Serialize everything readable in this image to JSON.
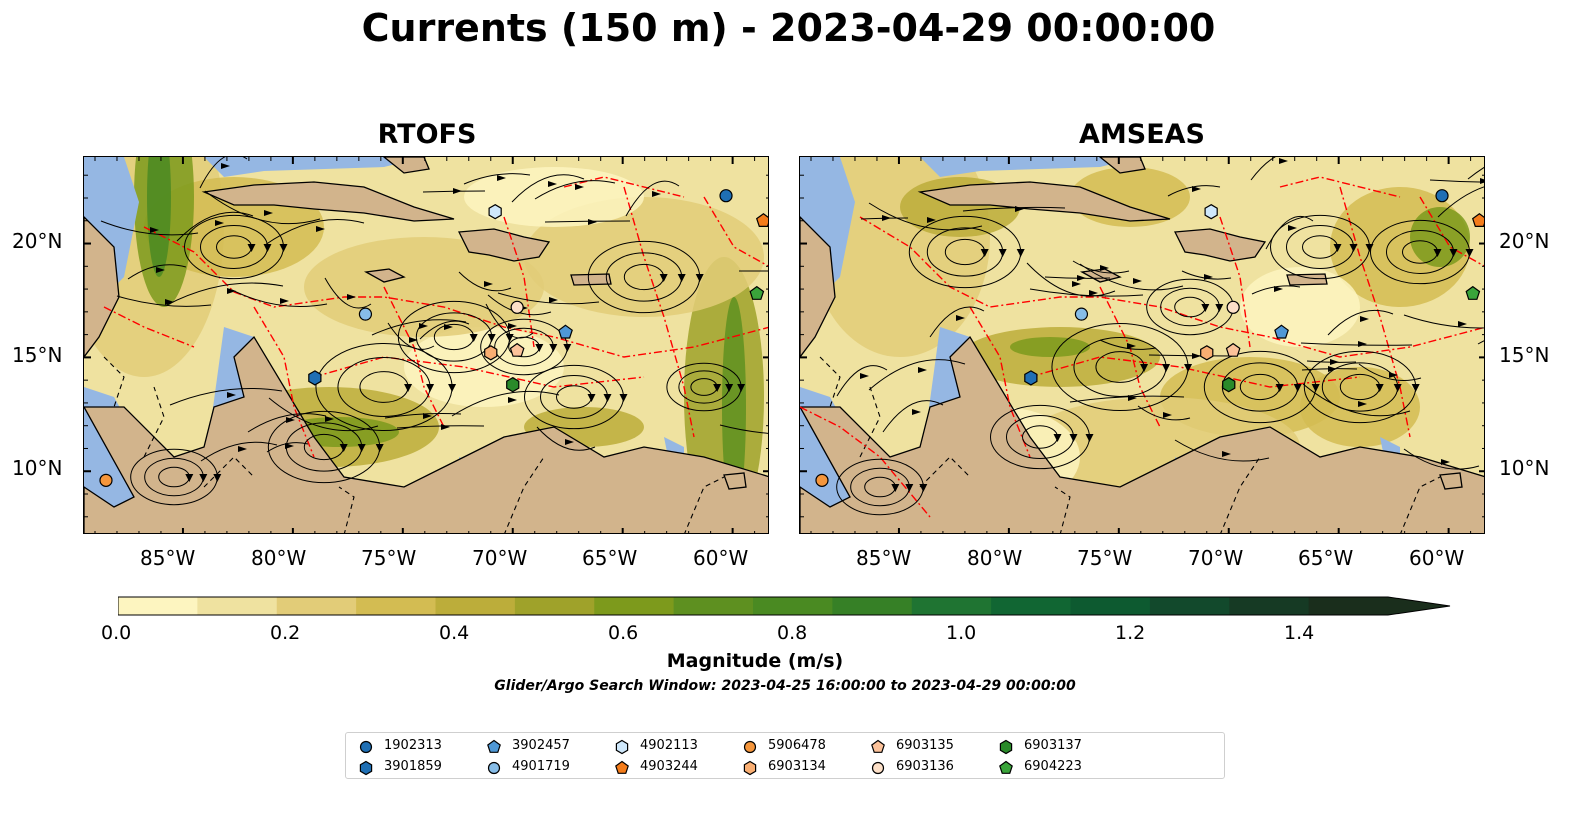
{
  "title": "Currents (150 m) - 2023-04-29 00:00:00",
  "panels": [
    {
      "title": "RTOFS"
    },
    {
      "title": "AMSEAS"
    }
  ],
  "axes": {
    "lon_ticks": [
      "85°W",
      "80°W",
      "75°W",
      "70°W",
      "65°W",
      "60°W"
    ],
    "lat_ticks": [
      "20°N",
      "15°N",
      "10°N"
    ],
    "lon_range": [
      -89.5,
      -58.3
    ],
    "lat_range": [
      7.2,
      23.8
    ]
  },
  "colorbar": {
    "title": "Magnitude (m/s)",
    "ticks": [
      "0.0",
      "0.2",
      "0.4",
      "0.6",
      "0.8",
      "1.0",
      "1.2",
      "1.4"
    ],
    "range": [
      0.0,
      1.5
    ],
    "extend": "max",
    "colors": [
      "#fdf5c0",
      "#efe2a0",
      "#e2cc78",
      "#d3bc52",
      "#bcad3a",
      "#9fa22a",
      "#7d9a1c",
      "#5e9020",
      "#4a8a22",
      "#368026",
      "#1f7432",
      "#116633",
      "#0d5a30",
      "#12492c",
      "#163a24",
      "#1a2e1c"
    ]
  },
  "search_window": "Glider/Argo Search Window: 2023-04-25 16:00:00 to 2023-04-29 00:00:00",
  "colors": {
    "land": "#d2b48c",
    "water_background": "#95b7e3",
    "eez_line": "#ff0000",
    "streamline": "#000000",
    "border": "#000000"
  },
  "legend": [
    {
      "id": "1902313",
      "marker": "circle",
      "color": "#1f6fb4"
    },
    {
      "id": "3901859",
      "marker": "hexagon",
      "color": "#1f6fb4"
    },
    {
      "id": "3902457",
      "marker": "pentagon",
      "color": "#4f98d6"
    },
    {
      "id": "4901719",
      "marker": "circle",
      "color": "#87bde8"
    },
    {
      "id": "4902113",
      "marker": "hexagon",
      "color": "#cfe8fb"
    },
    {
      "id": "4903244",
      "marker": "pentagon",
      "color": "#f47c1a"
    },
    {
      "id": "5906478",
      "marker": "circle",
      "color": "#f5963c"
    },
    {
      "id": "6903134",
      "marker": "hexagon",
      "color": "#f9ae72"
    },
    {
      "id": "6903135",
      "marker": "pentagon",
      "color": "#fcc29a"
    },
    {
      "id": "6903136",
      "marker": "circle",
      "color": "#fde0c8"
    },
    {
      "id": "6903137",
      "marker": "hexagon",
      "color": "#2a8a2a"
    },
    {
      "id": "6904223",
      "marker": "pentagon",
      "color": "#3aa43a"
    }
  ],
  "floats": [
    {
      "id": "1902313",
      "lon": -60.3,
      "lat": 22.1
    },
    {
      "id": "3901859",
      "lon": -79.0,
      "lat": 14.1
    },
    {
      "id": "3902457",
      "lon": -67.6,
      "lat": 16.1
    },
    {
      "id": "4901719",
      "lon": -76.7,
      "lat": 16.9
    },
    {
      "id": "4902113",
      "lon": -70.8,
      "lat": 21.4
    },
    {
      "id": "4903244",
      "lon": -58.6,
      "lat": 21.0
    },
    {
      "id": "5906478",
      "lon": -88.5,
      "lat": 9.6
    },
    {
      "id": "6903134",
      "lon": -71.0,
      "lat": 15.2
    },
    {
      "id": "6903135",
      "lon": -69.8,
      "lat": 15.3
    },
    {
      "id": "6903136",
      "lon": -69.8,
      "lat": 17.2
    },
    {
      "id": "6903137",
      "lon": -70.0,
      "lat": 13.8
    },
    {
      "id": "6904223",
      "lon": -58.9,
      "lat": 17.8
    }
  ]
}
